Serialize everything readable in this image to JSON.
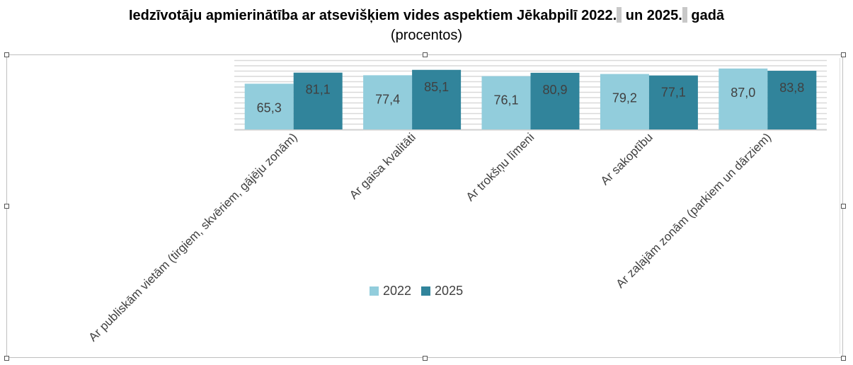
{
  "chart_data": {
    "type": "bar",
    "title_parts": [
      "Iedzīvotāju apmierinātība ar atsevišķiem vides aspektiem Jēkabpilī 2022.",
      " un 2025.",
      " gadā"
    ],
    "subtitle": "(procentos)",
    "categories": [
      "Ar publiskām vietām (tirgiem, skvēriem, gājēju zonām)",
      "Ar gaisa kvalitāti",
      "Ar trokšņu līmeni",
      "Ar sakoptību",
      "Ar zaļajām zonām (parkiem un dārziem)"
    ],
    "series": [
      {
        "name": "2022",
        "color": "#92cddc",
        "values": [
          65.3,
          77.4,
          76.1,
          79.2,
          87.0
        ],
        "labels": [
          "65,3",
          "77,4",
          "76,1",
          "79,2",
          "87,0"
        ]
      },
      {
        "name": "2025",
        "color": "#31849b",
        "values": [
          81.1,
          85.1,
          80.9,
          77.1,
          83.8
        ],
        "labels": [
          "81,1",
          "85,1",
          "80,9",
          "77,1",
          "83,8"
        ]
      }
    ],
    "grid": true,
    "legend": "bottom-center"
  }
}
